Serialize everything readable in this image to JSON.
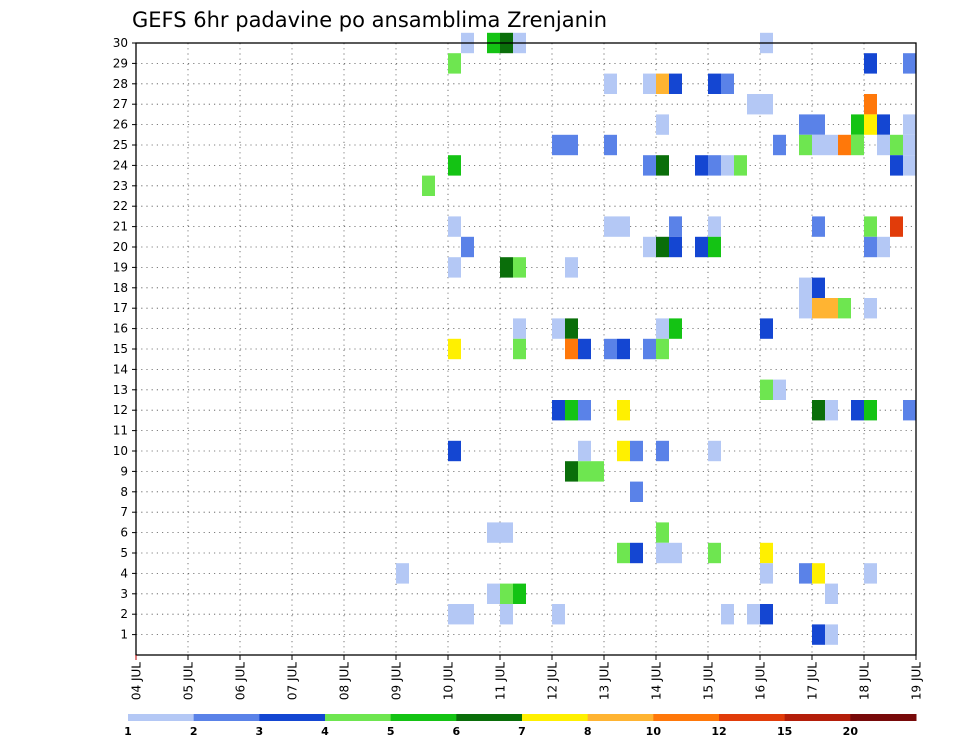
{
  "chart_data": {
    "type": "heatmap",
    "title": "GEFS 6hr padavine po ansamblima Zrenjanin",
    "xlabel": "",
    "ylabel": "",
    "x_tick_labels": [
      "04 JUL",
      "05 JUL",
      "06 JUL",
      "07 JUL",
      "08 JUL",
      "09 JUL",
      "10 JUL",
      "11 JUL",
      "12 JUL",
      "13 JUL",
      "14 JUL",
      "15 JUL",
      "16 JUL",
      "17 JUL",
      "18 JUL",
      "19 JUL"
    ],
    "xlim": [
      0,
      15
    ],
    "y_tick_labels": [
      "1",
      "2",
      "3",
      "4",
      "5",
      "6",
      "7",
      "8",
      "9",
      "10",
      "11",
      "12",
      "13",
      "14",
      "15",
      "16",
      "17",
      "18",
      "19",
      "20",
      "21",
      "22",
      "23",
      "24",
      "25",
      "26",
      "27",
      "28",
      "29",
      "30"
    ],
    "ylim": [
      0,
      30
    ],
    "grid": true,
    "colorbar": {
      "position": "bottom",
      "labels": [
        "1",
        "2",
        "3",
        "4",
        "5",
        "6",
        "7",
        "8",
        "10",
        "12",
        "15",
        "20"
      ],
      "colors": [
        "#b4c8f5",
        "#5a82e8",
        "#1446d2",
        "#6ee650",
        "#14c314",
        "#0a6e0a",
        "#fff000",
        "#ffb432",
        "#ff780a",
        "#e13c0a",
        "#b41e0a",
        "#780a0a"
      ]
    },
    "cell_width_days": 0.25,
    "cells": [
      {
        "x": 6.25,
        "y": 30,
        "c": 1
      },
      {
        "x": 6.75,
        "y": 30,
        "c": 5
      },
      {
        "x": 7.0,
        "y": 30,
        "c": 6
      },
      {
        "x": 7.25,
        "y": 30,
        "c": 1
      },
      {
        "x": 12.0,
        "y": 30,
        "c": 1
      },
      {
        "x": 6.0,
        "y": 29,
        "c": 4
      },
      {
        "x": 14.0,
        "y": 29,
        "c": 3
      },
      {
        "x": 14.75,
        "y": 29,
        "c": 2
      },
      {
        "x": 9.0,
        "y": 28,
        "c": 1
      },
      {
        "x": 9.75,
        "y": 28,
        "c": 1
      },
      {
        "x": 10.0,
        "y": 28,
        "c": 8
      },
      {
        "x": 10.25,
        "y": 28,
        "c": 3
      },
      {
        "x": 11.0,
        "y": 28,
        "c": 3
      },
      {
        "x": 11.25,
        "y": 28,
        "c": 2
      },
      {
        "x": 11.75,
        "y": 27,
        "c": 1
      },
      {
        "x": 12.0,
        "y": 27,
        "c": 1
      },
      {
        "x": 14.0,
        "y": 27,
        "c": 9
      },
      {
        "x": 10.0,
        "y": 26,
        "c": 1
      },
      {
        "x": 12.75,
        "y": 26,
        "c": 2
      },
      {
        "x": 13.0,
        "y": 26,
        "c": 2
      },
      {
        "x": 13.75,
        "y": 26,
        "c": 5
      },
      {
        "x": 14.0,
        "y": 26,
        "c": 7
      },
      {
        "x": 14.25,
        "y": 26,
        "c": 3
      },
      {
        "x": 14.75,
        "y": 26,
        "c": 1
      },
      {
        "x": 8.0,
        "y": 25,
        "c": 2
      },
      {
        "x": 8.25,
        "y": 25,
        "c": 2
      },
      {
        "x": 9.0,
        "y": 25,
        "c": 2
      },
      {
        "x": 12.25,
        "y": 25,
        "c": 2
      },
      {
        "x": 12.75,
        "y": 25,
        "c": 4
      },
      {
        "x": 13.0,
        "y": 25,
        "c": 1
      },
      {
        "x": 13.25,
        "y": 25,
        "c": 1
      },
      {
        "x": 13.5,
        "y": 25,
        "c": 9
      },
      {
        "x": 13.75,
        "y": 25,
        "c": 4
      },
      {
        "x": 14.25,
        "y": 25,
        "c": 1
      },
      {
        "x": 14.5,
        "y": 25,
        "c": 4
      },
      {
        "x": 14.75,
        "y": 25,
        "c": 1
      },
      {
        "x": 6.0,
        "y": 24,
        "c": 5
      },
      {
        "x": 9.75,
        "y": 24,
        "c": 2
      },
      {
        "x": 10.0,
        "y": 24,
        "c": 6
      },
      {
        "x": 10.75,
        "y": 24,
        "c": 3
      },
      {
        "x": 11.0,
        "y": 24,
        "c": 2
      },
      {
        "x": 11.25,
        "y": 24,
        "c": 1
      },
      {
        "x": 11.5,
        "y": 24,
        "c": 4
      },
      {
        "x": 14.5,
        "y": 24,
        "c": 3
      },
      {
        "x": 14.75,
        "y": 24,
        "c": 1
      },
      {
        "x": 5.5,
        "y": 23,
        "c": 4
      },
      {
        "x": 6.0,
        "y": 21,
        "c": 1
      },
      {
        "x": 9.0,
        "y": 21,
        "c": 1
      },
      {
        "x": 9.25,
        "y": 21,
        "c": 1
      },
      {
        "x": 10.25,
        "y": 21,
        "c": 2
      },
      {
        "x": 11.0,
        "y": 21,
        "c": 1
      },
      {
        "x": 13.0,
        "y": 21,
        "c": 2
      },
      {
        "x": 14.0,
        "y": 21,
        "c": 4
      },
      {
        "x": 14.5,
        "y": 21,
        "c": 10
      },
      {
        "x": 6.25,
        "y": 20,
        "c": 2
      },
      {
        "x": 9.75,
        "y": 20,
        "c": 1
      },
      {
        "x": 10.0,
        "y": 20,
        "c": 6
      },
      {
        "x": 10.25,
        "y": 20,
        "c": 3
      },
      {
        "x": 10.75,
        "y": 20,
        "c": 3
      },
      {
        "x": 11.0,
        "y": 20,
        "c": 5
      },
      {
        "x": 14.0,
        "y": 20,
        "c": 2
      },
      {
        "x": 14.25,
        "y": 20,
        "c": 1
      },
      {
        "x": 6.0,
        "y": 19,
        "c": 1
      },
      {
        "x": 7.0,
        "y": 19,
        "c": 6
      },
      {
        "x": 7.25,
        "y": 19,
        "c": 4
      },
      {
        "x": 8.25,
        "y": 19,
        "c": 1
      },
      {
        "x": 12.75,
        "y": 18,
        "c": 1
      },
      {
        "x": 13.0,
        "y": 18,
        "c": 3
      },
      {
        "x": 12.75,
        "y": 17,
        "c": 1
      },
      {
        "x": 13.0,
        "y": 17,
        "c": 8
      },
      {
        "x": 13.25,
        "y": 17,
        "c": 8
      },
      {
        "x": 13.5,
        "y": 17,
        "c": 4
      },
      {
        "x": 14.0,
        "y": 17,
        "c": 1
      },
      {
        "x": 10.0,
        "y": 16,
        "c": 1
      },
      {
        "x": 10.25,
        "y": 16,
        "c": 5
      },
      {
        "x": 7.25,
        "y": 16,
        "c": 1
      },
      {
        "x": 8.0,
        "y": 16,
        "c": 1
      },
      {
        "x": 8.25,
        "y": 16,
        "c": 6
      },
      {
        "x": 12.0,
        "y": 16,
        "c": 3
      },
      {
        "x": 6.0,
        "y": 15,
        "c": 7
      },
      {
        "x": 7.25,
        "y": 15,
        "c": 4
      },
      {
        "x": 8.25,
        "y": 15,
        "c": 9
      },
      {
        "x": 8.5,
        "y": 15,
        "c": 3
      },
      {
        "x": 9.0,
        "y": 15,
        "c": 2
      },
      {
        "x": 9.25,
        "y": 15,
        "c": 3
      },
      {
        "x": 9.75,
        "y": 15,
        "c": 2
      },
      {
        "x": 10.0,
        "y": 15,
        "c": 4
      },
      {
        "x": 12.0,
        "y": 13,
        "c": 4
      },
      {
        "x": 12.25,
        "y": 13,
        "c": 1
      },
      {
        "x": 8.0,
        "y": 12,
        "c": 3
      },
      {
        "x": 8.25,
        "y": 12,
        "c": 5
      },
      {
        "x": 8.5,
        "y": 12,
        "c": 2
      },
      {
        "x": 9.25,
        "y": 12,
        "c": 7
      },
      {
        "x": 13.0,
        "y": 12,
        "c": 6
      },
      {
        "x": 13.25,
        "y": 12,
        "c": 1
      },
      {
        "x": 13.75,
        "y": 12,
        "c": 3
      },
      {
        "x": 14.0,
        "y": 12,
        "c": 5
      },
      {
        "x": 14.75,
        "y": 12,
        "c": 2
      },
      {
        "x": 6.0,
        "y": 10,
        "c": 3
      },
      {
        "x": 8.5,
        "y": 10,
        "c": 1
      },
      {
        "x": 9.25,
        "y": 10,
        "c": 7
      },
      {
        "x": 9.5,
        "y": 10,
        "c": 2
      },
      {
        "x": 10.0,
        "y": 10,
        "c": 2
      },
      {
        "x": 11.0,
        "y": 10,
        "c": 1
      },
      {
        "x": 8.25,
        "y": 9,
        "c": 6
      },
      {
        "x": 8.5,
        "y": 9,
        "c": 4
      },
      {
        "x": 8.75,
        "y": 9,
        "c": 4
      },
      {
        "x": 9.5,
        "y": 8,
        "c": 2
      },
      {
        "x": 6.75,
        "y": 6,
        "c": 1
      },
      {
        "x": 7.0,
        "y": 6,
        "c": 1
      },
      {
        "x": 10.0,
        "y": 6,
        "c": 4
      },
      {
        "x": 9.25,
        "y": 5,
        "c": 4
      },
      {
        "x": 9.5,
        "y": 5,
        "c": 3
      },
      {
        "x": 10.0,
        "y": 5,
        "c": 1
      },
      {
        "x": 10.25,
        "y": 5,
        "c": 1
      },
      {
        "x": 11.0,
        "y": 5,
        "c": 4
      },
      {
        "x": 12.0,
        "y": 5,
        "c": 7
      },
      {
        "x": 5.0,
        "y": 4,
        "c": 1
      },
      {
        "x": 12.0,
        "y": 4,
        "c": 1
      },
      {
        "x": 12.75,
        "y": 4,
        "c": 2
      },
      {
        "x": 13.0,
        "y": 4,
        "c": 7
      },
      {
        "x": 14.0,
        "y": 4,
        "c": 1
      },
      {
        "x": 6.75,
        "y": 3,
        "c": 1
      },
      {
        "x": 7.0,
        "y": 3,
        "c": 4
      },
      {
        "x": 7.25,
        "y": 3,
        "c": 5
      },
      {
        "x": 13.25,
        "y": 3,
        "c": 1
      },
      {
        "x": 6.0,
        "y": 2,
        "c": 1
      },
      {
        "x": 6.25,
        "y": 2,
        "c": 1
      },
      {
        "x": 7.0,
        "y": 2,
        "c": 1
      },
      {
        "x": 8.0,
        "y": 2,
        "c": 1
      },
      {
        "x": 11.25,
        "y": 2,
        "c": 1
      },
      {
        "x": 11.75,
        "y": 2,
        "c": 1
      },
      {
        "x": 12.0,
        "y": 2,
        "c": 3
      },
      {
        "x": 13.0,
        "y": 1,
        "c": 3
      },
      {
        "x": 13.25,
        "y": 1,
        "c": 1
      }
    ]
  }
}
